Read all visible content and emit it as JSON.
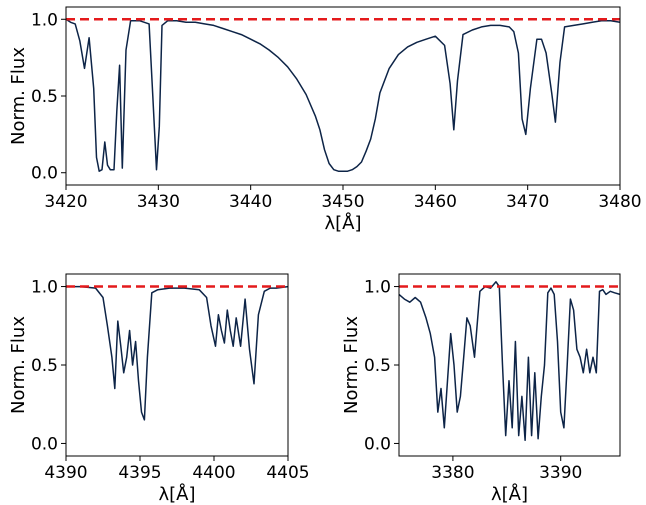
{
  "chart_data": [
    {
      "type": "line",
      "title": "",
      "xlabel": "λ[Å]",
      "ylabel": "Norm. Flux",
      "xlim": [
        3420,
        3480
      ],
      "ylim": [
        -0.08,
        1.08
      ],
      "xticks": [
        3420,
        3430,
        3440,
        3450,
        3460,
        3470,
        3480
      ],
      "xtick_labels": [
        "3420",
        "3430",
        "3440",
        "3450",
        "3460",
        "3470",
        "3480"
      ],
      "yticks": [
        0.0,
        0.5,
        1.0
      ],
      "ytick_labels": [
        "0.0",
        "0.5",
        "1.0"
      ],
      "grid": false,
      "continuum": {
        "y": 1.0,
        "color": "#e41a1c",
        "style": "dashed"
      },
      "series": [
        {
          "color": "#0d2447",
          "x": [
            3420.0,
            3420.5,
            3421.0,
            3421.5,
            3422.0,
            3422.5,
            3423.0,
            3423.3,
            3423.6,
            3423.9,
            3424.2,
            3424.5,
            3424.8,
            3425.2,
            3425.5,
            3425.8,
            3426.1,
            3426.5,
            3427.0,
            3428.0,
            3429.0,
            3429.4,
            3429.8,
            3430.1,
            3430.4,
            3431.0,
            3432.0,
            3433.0,
            3434.0,
            3435.0,
            3436.0,
            3437.0,
            3438.0,
            3439.0,
            3440.0,
            3441.0,
            3442.0,
            3443.0,
            3444.0,
            3445.0,
            3446.0,
            3447.0,
            3447.5,
            3448.0,
            3448.5,
            3449.0,
            3449.5,
            3450.0,
            3450.5,
            3451.0,
            3451.5,
            3452.0,
            3452.5,
            3453.0,
            3453.5,
            3454.0,
            3455.0,
            3456.0,
            3457.0,
            3458.0,
            3459.0,
            3460.0,
            3461.0,
            3461.6,
            3462.0,
            3462.4,
            3463.0,
            3464.0,
            3465.0,
            3466.0,
            3467.0,
            3468.0,
            3468.5,
            3469.0,
            3469.4,
            3469.8,
            3470.3,
            3471.0,
            3471.5,
            3472.0,
            3472.6,
            3473.0,
            3473.5,
            3474.0,
            3475.0,
            3476.0,
            3477.0,
            3478.0,
            3479.0,
            3480.0
          ],
          "y": [
            1.0,
            0.98,
            0.97,
            0.86,
            0.68,
            0.88,
            0.55,
            0.1,
            0.01,
            0.02,
            0.2,
            0.05,
            0.02,
            0.02,
            0.4,
            0.7,
            0.03,
            0.8,
            0.99,
            0.99,
            0.97,
            0.5,
            0.02,
            0.3,
            0.96,
            0.99,
            0.99,
            0.98,
            0.98,
            0.97,
            0.96,
            0.94,
            0.92,
            0.9,
            0.87,
            0.84,
            0.8,
            0.75,
            0.69,
            0.61,
            0.51,
            0.37,
            0.28,
            0.15,
            0.06,
            0.02,
            0.01,
            0.01,
            0.01,
            0.02,
            0.04,
            0.07,
            0.14,
            0.22,
            0.35,
            0.52,
            0.68,
            0.77,
            0.82,
            0.85,
            0.87,
            0.89,
            0.83,
            0.58,
            0.28,
            0.6,
            0.9,
            0.93,
            0.95,
            0.96,
            0.96,
            0.95,
            0.92,
            0.78,
            0.35,
            0.25,
            0.55,
            0.87,
            0.87,
            0.78,
            0.52,
            0.33,
            0.72,
            0.95,
            0.96,
            0.97,
            0.98,
            0.99,
            0.99,
            0.98
          ]
        }
      ]
    },
    {
      "type": "line",
      "title": "",
      "xlabel": "λ[Å]",
      "ylabel": "Norm. Flux",
      "xlim": [
        4390,
        4405
      ],
      "ylim": [
        -0.08,
        1.08
      ],
      "xticks": [
        4390,
        4395,
        4400,
        4405
      ],
      "xtick_labels": [
        "4390",
        "4395",
        "4400",
        "4405"
      ],
      "yticks": [
        0.0,
        0.5,
        1.0
      ],
      "ytick_labels": [
        "0.0",
        "0.5",
        "1.0"
      ],
      "grid": false,
      "continuum": {
        "y": 1.0,
        "color": "#e41a1c",
        "style": "dashed"
      },
      "series": [
        {
          "color": "#0d2447",
          "x": [
            4390.0,
            4391.0,
            4392.0,
            4392.5,
            4392.8,
            4393.1,
            4393.3,
            4393.5,
            4393.7,
            4393.9,
            4394.1,
            4394.3,
            4394.5,
            4394.7,
            4394.9,
            4395.1,
            4395.3,
            4395.5,
            4395.8,
            4396.2,
            4397.0,
            4398.0,
            4399.0,
            4399.5,
            4399.8,
            4400.1,
            4400.3,
            4400.5,
            4400.7,
            4400.9,
            4401.1,
            4401.3,
            4401.5,
            4401.8,
            4402.1,
            4402.4,
            4402.7,
            4403.0,
            4403.4,
            4403.8,
            4404.2,
            4405.0
          ],
          "y": [
            1.0,
            1.0,
            0.99,
            0.93,
            0.75,
            0.55,
            0.35,
            0.78,
            0.62,
            0.45,
            0.55,
            0.72,
            0.5,
            0.65,
            0.4,
            0.2,
            0.15,
            0.55,
            0.96,
            0.98,
            0.99,
            0.99,
            0.98,
            0.93,
            0.75,
            0.62,
            0.82,
            0.72,
            0.64,
            0.85,
            0.72,
            0.62,
            0.8,
            0.62,
            0.92,
            0.6,
            0.38,
            0.82,
            0.97,
            0.99,
            0.99,
            1.0
          ]
        }
      ]
    },
    {
      "type": "line",
      "title": "",
      "xlabel": "λ[Å]",
      "ylabel": "Norm. Flux",
      "xlim": [
        3375,
        3395.5
      ],
      "ylim": [
        -0.08,
        1.08
      ],
      "xticks": [
        3380,
        3390
      ],
      "xtick_labels": [
        "3380",
        "3390"
      ],
      "yticks": [
        0.0,
        0.5,
        1.0
      ],
      "ytick_labels": [
        "0.0",
        "0.5",
        "1.0"
      ],
      "grid": false,
      "continuum": {
        "y": 1.0,
        "color": "#e41a1c",
        "style": "dashed"
      },
      "series": [
        {
          "color": "#0d2447",
          "x": [
            3375.0,
            3375.5,
            3376.0,
            3376.5,
            3377.0,
            3377.5,
            3377.9,
            3378.3,
            3378.6,
            3378.9,
            3379.2,
            3379.5,
            3379.8,
            3380.1,
            3380.4,
            3380.7,
            3381.0,
            3381.3,
            3381.6,
            3382.0,
            3382.5,
            3383.0,
            3383.5,
            3384.0,
            3384.3,
            3384.6,
            3384.9,
            3385.2,
            3385.5,
            3385.8,
            3386.1,
            3386.4,
            3386.7,
            3387.0,
            3387.3,
            3387.6,
            3387.9,
            3388.2,
            3388.5,
            3388.8,
            3389.1,
            3389.4,
            3389.7,
            3390.0,
            3390.3,
            3390.6,
            3390.9,
            3391.2,
            3391.5,
            3391.8,
            3392.1,
            3392.4,
            3392.7,
            3393.0,
            3393.3,
            3393.6,
            3393.9,
            3394.2,
            3394.6,
            3395.0,
            3395.5
          ],
          "y": [
            0.95,
            0.92,
            0.9,
            0.93,
            0.9,
            0.8,
            0.7,
            0.55,
            0.2,
            0.35,
            0.1,
            0.4,
            0.7,
            0.5,
            0.2,
            0.3,
            0.55,
            0.8,
            0.75,
            0.55,
            0.97,
            1.0,
            0.99,
            1.03,
            1.0,
            0.5,
            0.05,
            0.4,
            0.1,
            0.65,
            0.05,
            0.3,
            0.02,
            0.55,
            0.05,
            0.45,
            0.03,
            0.3,
            0.5,
            0.96,
            0.99,
            0.95,
            0.65,
            0.2,
            0.1,
            0.5,
            0.92,
            0.85,
            0.6,
            0.55,
            0.45,
            0.6,
            0.45,
            0.55,
            0.45,
            0.97,
            0.98,
            0.95,
            0.97,
            0.96,
            0.95
          ]
        }
      ]
    }
  ]
}
